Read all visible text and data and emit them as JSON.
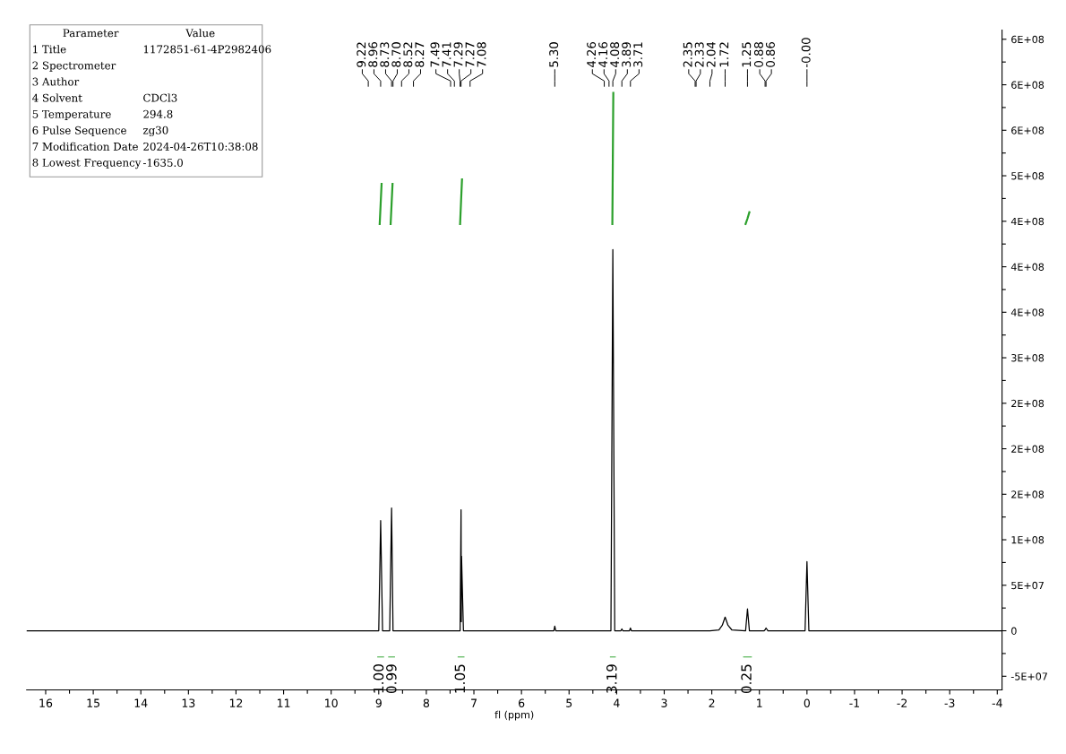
{
  "chart_data": {
    "type": "line",
    "xlabel": "fl (ppm)",
    "xlim": [
      16.4,
      -4.1
    ],
    "ylim": [
      -65000000,
      660000000
    ],
    "xticks": [
      16,
      {
        "value": 15.5,
        "label": null
      },
      15,
      {
        "value": 14.5,
        "label": null
      },
      14,
      {
        "value": 13.5,
        "label": null
      },
      13,
      {
        "value": 12.5,
        "label": null
      },
      12,
      {
        "value": 11.5,
        "label": null
      },
      11,
      {
        "value": 10.5,
        "label": null
      },
      10,
      {
        "value": 9.5,
        "label": null
      },
      9,
      {
        "value": 8.5,
        "label": null
      },
      8,
      {
        "value": 7.5,
        "label": null
      },
      7,
      {
        "value": 6.5,
        "label": null
      },
      6,
      {
        "value": 5.5,
        "label": null
      },
      5,
      {
        "value": 4.5,
        "label": null
      },
      4,
      {
        "value": 3.5,
        "label": null
      },
      3,
      {
        "value": 2.5,
        "label": null
      },
      2,
      {
        "value": 1.5,
        "label": null
      },
      1,
      {
        "value": 0.5,
        "label": null
      },
      0,
      {
        "value": -0.5,
        "label": null
      },
      {
        "value": -1,
        "label": "-1"
      },
      {
        "value": -1.5,
        "label": null
      },
      {
        "value": -2,
        "label": "-2"
      },
      {
        "value": -2.5,
        "label": null
      },
      {
        "value": -3,
        "label": "-3"
      },
      {
        "value": -3.5,
        "label": null
      },
      {
        "value": -4,
        "label": "-4"
      }
    ],
    "yticks": [
      {
        "value": -50000000,
        "label": "-5E+07"
      },
      {
        "value": -25000000,
        "label": null
      },
      {
        "value": 0,
        "label": "0"
      },
      {
        "value": 25000000,
        "label": null
      },
      {
        "value": 50000000,
        "label": "5E+07"
      },
      {
        "value": 75000000,
        "label": null
      },
      {
        "value": 100000000,
        "label": "1E+08"
      },
      {
        "value": 125000000,
        "label": null
      },
      {
        "value": 150000000,
        "label": "2E+08"
      },
      {
        "value": 175000000,
        "label": null
      },
      {
        "value": 200000000,
        "label": "2E+08"
      },
      {
        "value": 225000000,
        "label": null
      },
      {
        "value": 250000000,
        "label": "2E+08"
      },
      {
        "value": 275000000,
        "label": null
      },
      {
        "value": 300000000,
        "label": "3E+08"
      },
      {
        "value": 325000000,
        "label": null
      },
      {
        "value": 350000000,
        "label": "4E+08"
      },
      {
        "value": 375000000,
        "label": null
      },
      {
        "value": 400000000,
        "label": "4E+08"
      },
      {
        "value": 425000000,
        "label": null
      },
      {
        "value": 450000000,
        "label": "4E+08"
      },
      {
        "value": 475000000,
        "label": null
      },
      {
        "value": 500000000,
        "label": "5E+08"
      },
      {
        "value": 525000000,
        "label": null
      },
      {
        "value": 550000000,
        "label": "6E+08"
      },
      {
        "value": 575000000,
        "label": null
      },
      {
        "value": 600000000,
        "label": "6E+08"
      },
      {
        "value": 625000000,
        "label": null
      },
      {
        "value": 650000000,
        "label": "6E+08"
      }
    ],
    "grid": false,
    "legend": false,
    "marker": "none",
    "line_style": "solid",
    "series": [
      {
        "color": "#000000",
        "x": [
          16.4,
          9.22,
          9.0,
          8.96,
          8.92,
          8.77,
          8.73,
          8.7,
          8.52,
          8.27,
          7.49,
          7.41,
          7.31,
          7.29,
          7.27,
          7.265,
          7.26,
          7.22,
          7.08,
          5.32,
          5.3,
          5.28,
          4.26,
          4.16,
          4.12,
          4.08,
          4.04,
          3.91,
          3.89,
          3.87,
          3.73,
          3.71,
          3.69,
          2.35,
          2.33,
          2.04,
          1.85,
          1.78,
          1.72,
          1.66,
          1.58,
          1.29,
          1.25,
          1.21,
          0.9,
          0.88,
          0.86,
          0.82,
          0.04,
          0.0,
          -0.04,
          -4.1
        ],
        "values": [
          0,
          0,
          0,
          121000000,
          0,
          0,
          135000000,
          0,
          0,
          0,
          0,
          0,
          0,
          0,
          133000000,
          10000000,
          82000000,
          0,
          0,
          0,
          5000000,
          0,
          0,
          0,
          0,
          419000000,
          0,
          0,
          2000000,
          0,
          0,
          3000000,
          0,
          0,
          0,
          0,
          1000000,
          6000000,
          15000000,
          6000000,
          1000000,
          0,
          24000000,
          0,
          0,
          1000000,
          3000000,
          0,
          0,
          76000000,
          0,
          0
        ]
      },
      {
        "color": "#2ca02c",
        "x": [
          8.98,
          8.96,
          8.94
        ],
        "values": [
          447000000,
          469000000,
          491000000
        ]
      },
      {
        "color": "#2ca02c",
        "x": [
          8.75,
          8.73,
          8.71
        ],
        "values": [
          447000000,
          469000000,
          491000000
        ]
      },
      {
        "color": "#2ca02c",
        "x": [
          7.29,
          7.27,
          7.25
        ],
        "values": [
          447000000,
          472000000,
          496000000
        ]
      },
      {
        "color": "#2ca02c",
        "x": [
          4.09,
          4.08,
          4.07
        ],
        "values": [
          447000000,
          519000000,
          591000000
        ]
      },
      {
        "color": "#2ca02c",
        "x": [
          1.29,
          1.25,
          1.21
        ],
        "values": [
          447000000,
          453000000,
          460000000
        ]
      }
    ],
    "annotations": [
      "Parameter\tValue",
      "1 Title\t1172851-61-4P2982406",
      "2 Spectrometer",
      "3 Author",
      "4 Solvent\tCDCl3",
      "5 Temperature\t294.8",
      "6 Pulse Sequence\tzg30",
      "7 Modification Date\t2024-04-26T10:38:08",
      "8 Lowest Frequency\t-1635.0",
      "1.00",
      "0.99",
      "1.05",
      "3.19",
      "0.25",
      {
        "text": "9.22",
        "x": 9.22
      },
      {
        "text": "8.96",
        "x": 8.96
      },
      {
        "text": "8.73",
        "x": 8.73
      },
      {
        "text": "8.70",
        "x": 8.7
      },
      {
        "text": "8.52",
        "x": 8.52
      },
      {
        "text": "8.27",
        "x": 8.27
      },
      {
        "text": "7.49",
        "x": 7.49
      },
      {
        "text": "7.41",
        "x": 7.41
      },
      {
        "text": "7.29",
        "x": 7.29
      },
      {
        "text": "7.27",
        "x": 7.27
      },
      {
        "text": "7.08",
        "x": 7.08
      },
      {
        "text": "5.30",
        "x": 5.3
      },
      {
        "text": "4.26",
        "x": 4.26
      },
      {
        "text": "4.16",
        "x": 4.16
      },
      {
        "text": "4.08",
        "x": 4.08
      },
      {
        "text": "3.89",
        "x": 3.89
      },
      {
        "text": "3.71",
        "x": 3.71
      },
      {
        "text": "2.35",
        "x": 2.35
      },
      {
        "text": "2.33",
        "x": 2.33
      },
      {
        "text": "2.04",
        "x": 2.04
      },
      {
        "text": "1.72",
        "x": 1.72
      },
      {
        "text": "1.25",
        "x": 1.25
      },
      {
        "text": "0.88",
        "x": 0.88
      },
      {
        "text": "0.86",
        "x": 0.86
      },
      {
        "text": "-0.00",
        "x": 0.0
      }
    ]
  }
}
